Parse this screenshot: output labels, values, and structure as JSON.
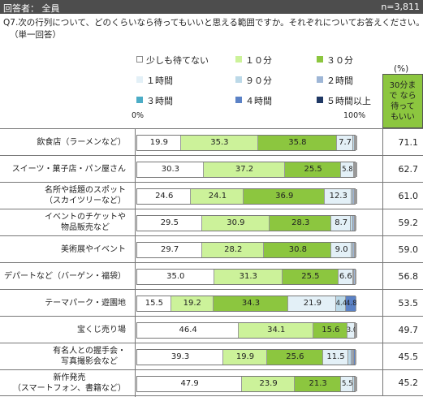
{
  "header": {
    "left": "回答者： 全員",
    "right": "n=3,811"
  },
  "question": {
    "line1": "Q7.次の行列について、どのくらいなら待ってもいいと思える範囲ですか。それぞれについてお答えください。",
    "line2": "（単一回答）"
  },
  "axis": {
    "min_label": "0%",
    "max_label": "100%"
  },
  "summary": {
    "header": "(%)",
    "box_label": "30分まで なら待って もいい"
  },
  "chart_data": {
    "type": "bar",
    "stacked": true,
    "orientation": "horizontal",
    "xlim": [
      0,
      100
    ],
    "categories": [
      "飲食店（ラーメンなど）",
      "スイーツ・菓子店・パン屋さん",
      "名所や話題のスポット（スカイツリーなど）",
      "イベントのチケットや物品販売など",
      "美術展やイベント",
      "デパートなど（バーゲン・福袋）",
      "テーマパーク・遊園地",
      "宝くじ売り場",
      "有名人との握手会・写真撮影会など",
      "新作発売（スマートフォン、書籍など）"
    ],
    "series": [
      {
        "name": "少しも待てない",
        "color": "#ffffff",
        "values": [
          19.9,
          30.3,
          24.6,
          29.5,
          29.7,
          35.0,
          15.5,
          46.4,
          39.3,
          47.9
        ]
      },
      {
        "name": "１０分",
        "color": "#ccf29a",
        "values": [
          35.3,
          37.2,
          24.1,
          30.9,
          28.2,
          31.3,
          19.2,
          34.1,
          19.9,
          23.9
        ]
      },
      {
        "name": "３０分",
        "color": "#8cc63f",
        "values": [
          35.8,
          25.5,
          36.9,
          28.3,
          30.8,
          25.5,
          34.3,
          15.6,
          25.6,
          21.3
        ]
      },
      {
        "name": "１時間",
        "color": "#e3f0f7",
        "values": [
          7.7,
          5.8,
          12.3,
          8.7,
          9.0,
          6.6,
          21.9,
          3.0,
          11.5,
          5.5
        ]
      },
      {
        "name": "９０分",
        "color": "#bcd9e8",
        "values": [
          0.5,
          0.5,
          0.8,
          1.3,
          1.0,
          0.6,
          4.4,
          0.4,
          1.3,
          0.7
        ]
      },
      {
        "name": "２時間",
        "color": "#9eb6d6",
        "values": [
          0.5,
          0.4,
          0.7,
          0.6,
          0.6,
          0.5,
          0.0,
          0.3,
          0.8,
          0.3
        ]
      },
      {
        "name": "３時間",
        "color": "#4bacc6",
        "values": [
          0.1,
          0.1,
          0.3,
          0.3,
          0.3,
          0.2,
          0.0,
          0.1,
          0.5,
          0.2
        ]
      },
      {
        "name": "４時間",
        "color": "#5b82c6",
        "values": [
          0.1,
          0.1,
          0.2,
          0.2,
          0.2,
          0.1,
          4.8,
          0.1,
          0.6,
          0.1
        ]
      },
      {
        "name": "５時間以上",
        "color": "#1f3864",
        "values": [
          0.1,
          0.1,
          0.1,
          0.2,
          0.2,
          0.2,
          0.0,
          0.0,
          0.5,
          0.1
        ]
      }
    ],
    "summary_values": [
      71.1,
      62.7,
      61.0,
      59.2,
      59.0,
      56.8,
      53.5,
      49.7,
      45.5,
      45.2
    ]
  }
}
